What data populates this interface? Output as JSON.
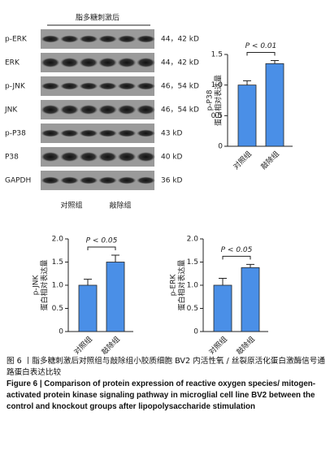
{
  "blot": {
    "header": "脂多糖刺激后",
    "rows": [
      {
        "label": "p-ERK",
        "size": "44，42 kD"
      },
      {
        "label": "ERK",
        "size": "44，42 kD"
      },
      {
        "label": "p-JNK",
        "size": "46，54 kD"
      },
      {
        "label": "JNK",
        "size": "46，54 kD"
      },
      {
        "label": "p-P38",
        "size": "43 kD"
      },
      {
        "label": "P38",
        "size": "40 kD"
      },
      {
        "label": "GAPDH",
        "size": "36 kD"
      }
    ],
    "groups": [
      "对照组",
      "敲除组"
    ]
  },
  "chart_data": [
    {
      "type": "bar",
      "ylabel": [
        "p-P38",
        "蛋白相对表达量"
      ],
      "categories": [
        "对照组",
        "敲除组"
      ],
      "values": [
        1.0,
        1.35
      ],
      "errors": [
        0.07,
        0.05
      ],
      "color": "#4a8fe7",
      "annotation": "P < 0.01",
      "ylim": [
        0,
        1.5
      ],
      "yticks": [
        0,
        0.5,
        {
          "value": 1,
          "label": "1.0"
        },
        1.5
      ]
    },
    {
      "type": "bar",
      "ylabel": [
        "p-JNK",
        "蛋白相对表达量"
      ],
      "categories": [
        "对照组",
        "敲除组"
      ],
      "values": [
        1.0,
        1.5
      ],
      "errors": [
        0.13,
        0.15
      ],
      "color": "#4a8fe7",
      "annotation": "P < 0.05",
      "ylim": [
        0,
        2
      ],
      "yticks": [
        0,
        0.5,
        {
          "value": 1,
          "label": "1.0"
        },
        1.5,
        {
          "value": 2,
          "label": "2.0"
        }
      ]
    },
    {
      "type": "bar",
      "ylabel": [
        "p-ERK",
        "蛋白相对表达量"
      ],
      "categories": [
        "对照组",
        "敲除组"
      ],
      "values": [
        1.0,
        1.38
      ],
      "errors": [
        0.15,
        0.07
      ],
      "color": "#4a8fe7",
      "annotation": "P < 0.05",
      "ylim": [
        0,
        2
      ],
      "yticks": [
        0,
        0.5,
        {
          "value": 1,
          "label": "1.0"
        },
        1.5,
        {
          "value": 2,
          "label": "2.0"
        }
      ]
    }
  ],
  "caption": {
    "zh": "图 6 丨脂多糖刺激后对照组与敲除组小胶质细胞 BV2 内活性氧 / 丝裂原活化蛋白激酶信号通路蛋白表达比较",
    "en": "Figure 6 | Comparison of protein expression of reactive oxygen species/ mitogen-activated protein kinase signaling pathway in microglial cell line BV2 between the control and knockout groups after lipopolysaccharide stimulation"
  }
}
